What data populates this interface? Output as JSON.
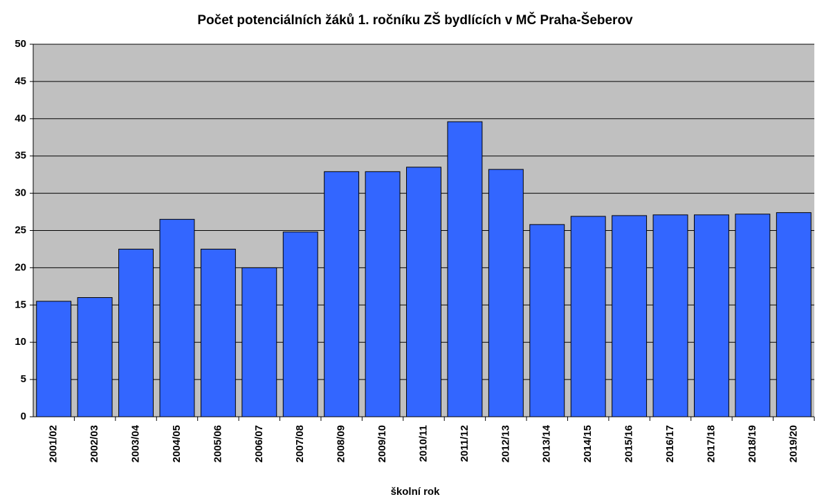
{
  "chart_data": {
    "type": "bar",
    "title": "Počet potenciálních žáků 1. ročníku ZŠ bydlících v MČ Praha-Šeberov",
    "xlabel": "školní rok",
    "categories": [
      "2001/02",
      "2002/03",
      "2003/04",
      "2004/05",
      "2005/06",
      "2006/07",
      "2007/08",
      "2008/09",
      "2009/10",
      "2010/11",
      "2011/12",
      "2012/13",
      "2013/14",
      "2014/15",
      "2015/16",
      "2016/17",
      "2017/18",
      "2018/19",
      "2019/20"
    ],
    "values": [
      15.5,
      16,
      22.5,
      26.5,
      22.5,
      20,
      24.8,
      32.9,
      32.9,
      33.5,
      39.6,
      33.2,
      25.8,
      26.9,
      27,
      27.1,
      27.1,
      27.2,
      27.4
    ],
    "color": "#3366ff",
    "ylim": [
      0,
      50
    ],
    "yticks": [
      0,
      5,
      10,
      15,
      20,
      25,
      30,
      35,
      40,
      45,
      50
    ],
    "grid": true
  }
}
